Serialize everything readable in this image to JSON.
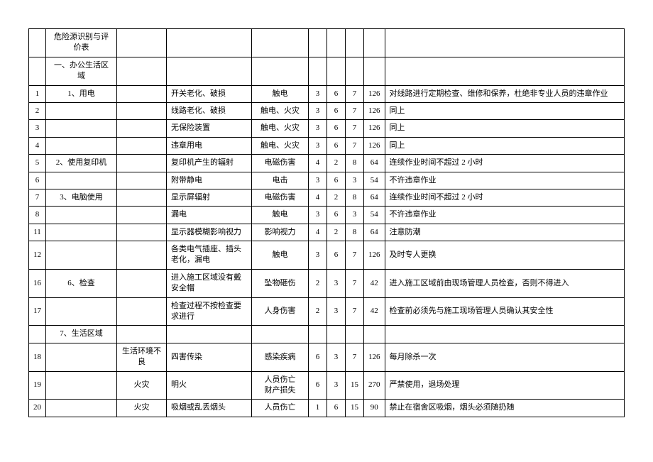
{
  "title": "危险源识别与评价表",
  "section": "一、办公生活区域",
  "subsection7": "7、生活区域",
  "rows": [
    {
      "num": "1",
      "item": "1、用电",
      "cond": "",
      "hazard": "开关老化、破损",
      "conseq": "触电",
      "l": "3",
      "e": "6",
      "c": "7",
      "d": "126",
      "measure": "对线路进行定期检查、维修和保养，杜绝非专业人员的违章作业"
    },
    {
      "num": "2",
      "item": "",
      "cond": "",
      "hazard": "线路老化、破损",
      "conseq": "触电、火灾",
      "l": "3",
      "e": "6",
      "c": "7",
      "d": "126",
      "measure": "同上"
    },
    {
      "num": "3",
      "item": "",
      "cond": "",
      "hazard": "无保险装置",
      "conseq": "触电、火灾",
      "l": "3",
      "e": "6",
      "c": "7",
      "d": "126",
      "measure": "同上"
    },
    {
      "num": "4",
      "item": "",
      "cond": "",
      "hazard": "违章用电",
      "conseq": "触电、火灾",
      "l": "3",
      "e": "6",
      "c": "7",
      "d": "126",
      "measure": "同上"
    },
    {
      "num": "5",
      "item": "2、使用复印机",
      "cond": "",
      "hazard": "复印机产生的辐射",
      "conseq": "电磁伤害",
      "l": "4",
      "e": "2",
      "c": "8",
      "d": "64",
      "measure": "连续作业时间不超过 2 小时"
    },
    {
      "num": "6",
      "item": "",
      "cond": "",
      "hazard": "附带静电",
      "conseq": "电击",
      "l": "3",
      "e": "6",
      "c": "3",
      "d": "54",
      "measure": "不许违章作业"
    },
    {
      "num": "7",
      "item": "3、电脑使用",
      "cond": "",
      "hazard": "显示屏辐射",
      "conseq": "电磁伤害",
      "l": "4",
      "e": "2",
      "c": "8",
      "d": "64",
      "measure": "连续作业时间不超过 2 小时"
    },
    {
      "num": "8",
      "item": "",
      "cond": "",
      "hazard": "漏电",
      "conseq": "触电",
      "l": "3",
      "e": "6",
      "c": "3",
      "d": "54",
      "measure": "不许违章作业"
    },
    {
      "num": "11",
      "item": "",
      "cond": "",
      "hazard": "显示器模糊影响视力",
      "conseq": "影响视力",
      "l": "4",
      "e": "2",
      "c": "8",
      "d": "64",
      "measure": "注意防潮"
    },
    {
      "num": "12",
      "item": "",
      "cond": "",
      "hazard": "各类电气插座、插头老化，漏电",
      "conseq": "触电",
      "l": "3",
      "e": "6",
      "c": "7",
      "d": "126",
      "measure": "及时专人更换"
    },
    {
      "num": "16",
      "item": "6、检查",
      "cond": "",
      "hazard": "进入施工区域没有戴安全帽",
      "conseq": "坠物砸伤",
      "l": "2",
      "e": "3",
      "c": "7",
      "d": "42",
      "measure": "进入施工区域前由现场管理人员检查，否则不得进入"
    },
    {
      "num": "17",
      "item": "",
      "cond": "",
      "hazard": "检查过程不按检查要求进行",
      "conseq": "人身伤害",
      "l": "2",
      "e": "3",
      "c": "7",
      "d": "42",
      "measure": "检查前必须先与施工现场管理人员确认其安全性"
    },
    {
      "num": "18",
      "item": "",
      "cond": "生活环境不良",
      "hazard": "四害传染",
      "conseq": "感染疾病",
      "l": "6",
      "e": "3",
      "c": "7",
      "d": "126",
      "measure": "每月除杀一次"
    },
    {
      "num": "19",
      "item": "",
      "cond": "火灾",
      "hazard": "明火",
      "conseq": "人员伤亡\n财产损失",
      "l": "6",
      "e": "3",
      "c": "15",
      "d": "270",
      "measure": "严禁使用，退场处理"
    },
    {
      "num": "20",
      "item": "",
      "cond": "火灾",
      "hazard": "吸烟或乱丢烟头",
      "conseq": "人员伤亡",
      "l": "1",
      "e": "6",
      "c": "15",
      "d": "90",
      "measure": "禁止在宿舍区吸烟，烟头必须随扔随"
    }
  ]
}
